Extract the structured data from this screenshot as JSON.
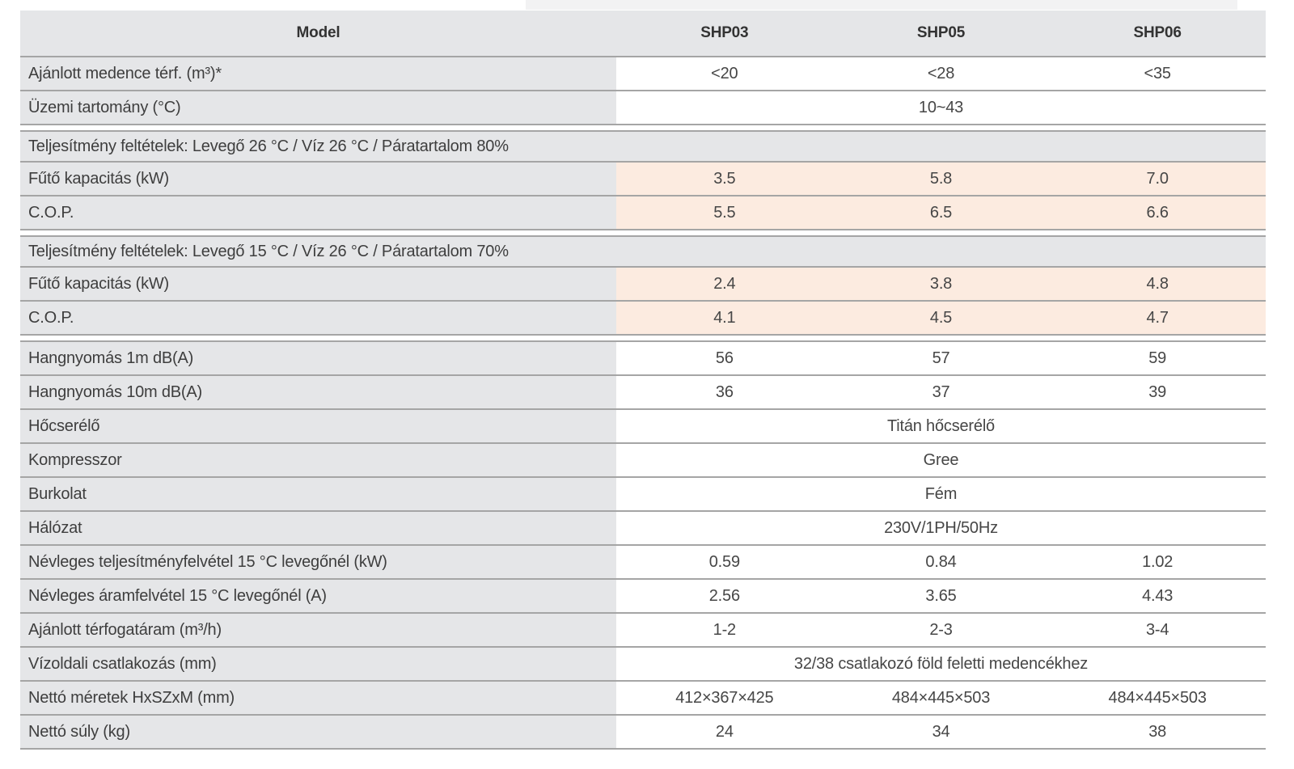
{
  "colors": {
    "header_bg": "#e5e6e8",
    "label_bg": "#e5e6e8",
    "section_bg": "#e5e6e8",
    "value_bg_default": "#ffffff",
    "value_bg_highlight": "#fcebe0",
    "row_line": "#a5a5a5",
    "text": "#3e3e3e"
  },
  "table": {
    "header": {
      "label": "Model",
      "columns": [
        "SHP03",
        "SHP05",
        "SHP06"
      ]
    },
    "rows": [
      {
        "type": "data",
        "label": "Ajánlott medence térf. (m³)*",
        "values": [
          "<20",
          "<28",
          "<35"
        ],
        "highlight": false
      },
      {
        "type": "span",
        "label": "Üzemi tartomány (°C)",
        "value": "10~43",
        "highlight": false
      },
      {
        "type": "gap"
      },
      {
        "type": "section",
        "label": "Teljesítmény feltételek: Levegő 26 °C / Víz 26 °C / Páratartalom 80%"
      },
      {
        "type": "data",
        "label": "Fűtő kapacitás (kW)",
        "values": [
          "3.5",
          "5.8",
          "7.0"
        ],
        "highlight": true
      },
      {
        "type": "data",
        "label": "C.O.P.",
        "values": [
          "5.5",
          "6.5",
          "6.6"
        ],
        "highlight": true
      },
      {
        "type": "gap"
      },
      {
        "type": "section",
        "label": "Teljesítmény feltételek: Levegő 15 °C / Víz 26 °C / Páratartalom 70%"
      },
      {
        "type": "data",
        "label": "Fűtő kapacitás (kW)",
        "values": [
          "2.4",
          "3.8",
          "4.8"
        ],
        "highlight": true
      },
      {
        "type": "data",
        "label": "C.O.P.",
        "values": [
          "4.1",
          "4.5",
          "4.7"
        ],
        "highlight": true
      },
      {
        "type": "gap"
      },
      {
        "type": "data",
        "label": "Hangnyomás 1m dB(A)",
        "values": [
          "56",
          "57",
          "59"
        ],
        "highlight": false
      },
      {
        "type": "data",
        "label": "Hangnyomás 10m dB(A)",
        "values": [
          "36",
          "37",
          "39"
        ],
        "highlight": false
      },
      {
        "type": "span",
        "label": "Hőcserélő",
        "value": "Titán hőcserélő",
        "highlight": false
      },
      {
        "type": "span",
        "label": "Kompresszor",
        "value": "Gree",
        "highlight": false
      },
      {
        "type": "span",
        "label": "Burkolat",
        "value": "Fém",
        "highlight": false
      },
      {
        "type": "span",
        "label": "Hálózat",
        "value": "230V/1PH/50Hz",
        "highlight": false
      },
      {
        "type": "data",
        "label": "Névleges teljesítményfelvétel 15 °C levegőnél (kW)",
        "values": [
          "0.59",
          "0.84",
          "1.02"
        ],
        "highlight": false
      },
      {
        "type": "data",
        "label": "Névleges áramfelvétel 15 °C levegőnél (A)",
        "values": [
          "2.56",
          "3.65",
          "4.43"
        ],
        "highlight": false
      },
      {
        "type": "data",
        "label": "Ajánlott térfogatáram (m³/h)",
        "values": [
          "1-2",
          "2-3",
          "3-4"
        ],
        "highlight": false
      },
      {
        "type": "span",
        "label": "Vízoldali csatlakozás (mm)",
        "value": "32/38 csatlakozó föld feletti medencékhez",
        "highlight": false
      },
      {
        "type": "data",
        "label": "Nettó méretek HxSZxM (mm)",
        "values": [
          "412×367×425",
          "484×445×503",
          "484×445×503"
        ],
        "highlight": false
      },
      {
        "type": "data",
        "label": "Nettó súly (kg)",
        "values": [
          "24",
          "34",
          "38"
        ],
        "highlight": false
      }
    ]
  }
}
